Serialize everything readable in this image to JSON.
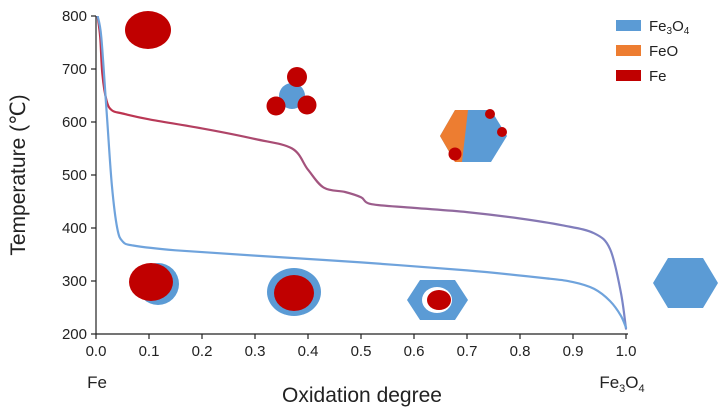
{
  "chart_data": {
    "type": "line",
    "title": "",
    "xlabel": "Oxidation degree",
    "ylabel": "Temperature (℃)",
    "xlim": [
      0.0,
      1.0
    ],
    "ylim": [
      200,
      800
    ],
    "x_ticks": [
      "0.0",
      "0.1",
      "0.2",
      "0.3",
      "0.4",
      "0.5",
      "0.6",
      "0.7",
      "0.8",
      "0.9",
      "1.0"
    ],
    "y_ticks": [
      "200",
      "300",
      "400",
      "500",
      "600",
      "700",
      "800"
    ],
    "x_end_labels": {
      "left": "Fe",
      "right_base": "Fe",
      "right_sub1": "3",
      "right_mid": "O",
      "right_sub2": "4"
    },
    "legend": {
      "placement": "top-right",
      "entries": [
        {
          "base": "Fe",
          "sub": "3",
          "mid": "O",
          "sub2": "4",
          "color": "#5b9bd5"
        },
        {
          "base": "FeO",
          "sub": "",
          "mid": "",
          "sub2": "",
          "color": "#ed7d31"
        },
        {
          "base": "Fe",
          "sub": "",
          "mid": "",
          "sub2": "",
          "color": "#c00000"
        }
      ]
    },
    "series": [
      {
        "color_start": "#c0304a",
        "color_end": "#7a86c8",
        "points": [
          [
            0.003,
            800
          ],
          [
            0.008,
            760
          ],
          [
            0.012,
            690
          ],
          [
            0.02,
            640
          ],
          [
            0.03,
            622
          ],
          [
            0.05,
            616
          ],
          [
            0.1,
            605
          ],
          [
            0.2,
            588
          ],
          [
            0.3,
            568
          ],
          [
            0.37,
            550
          ],
          [
            0.4,
            510
          ],
          [
            0.43,
            476
          ],
          [
            0.47,
            468
          ],
          [
            0.5,
            458
          ],
          [
            0.52,
            445
          ],
          [
            0.6,
            438
          ],
          [
            0.7,
            430
          ],
          [
            0.8,
            418
          ],
          [
            0.88,
            405
          ],
          [
            0.94,
            390
          ],
          [
            0.97,
            360
          ],
          [
            0.99,
            280
          ],
          [
            1.0,
            210
          ]
        ]
      },
      {
        "color_start": "#6fa3dc",
        "color_end": "#6fa3dc",
        "points": [
          [
            0.003,
            800
          ],
          [
            0.01,
            760
          ],
          [
            0.02,
            620
          ],
          [
            0.03,
            480
          ],
          [
            0.04,
            400
          ],
          [
            0.05,
            375
          ],
          [
            0.07,
            367
          ],
          [
            0.15,
            358
          ],
          [
            0.3,
            348
          ],
          [
            0.5,
            335
          ],
          [
            0.7,
            320
          ],
          [
            0.85,
            305
          ],
          [
            0.9,
            298
          ],
          [
            0.94,
            285
          ],
          [
            0.97,
            262
          ],
          [
            0.99,
            235
          ],
          [
            1.0,
            212
          ]
        ]
      }
    ],
    "colors": {
      "fe3o4": "#5b9bd5",
      "feo": "#ed7d31",
      "fe": "#c00000",
      "axis": "#222222"
    }
  }
}
